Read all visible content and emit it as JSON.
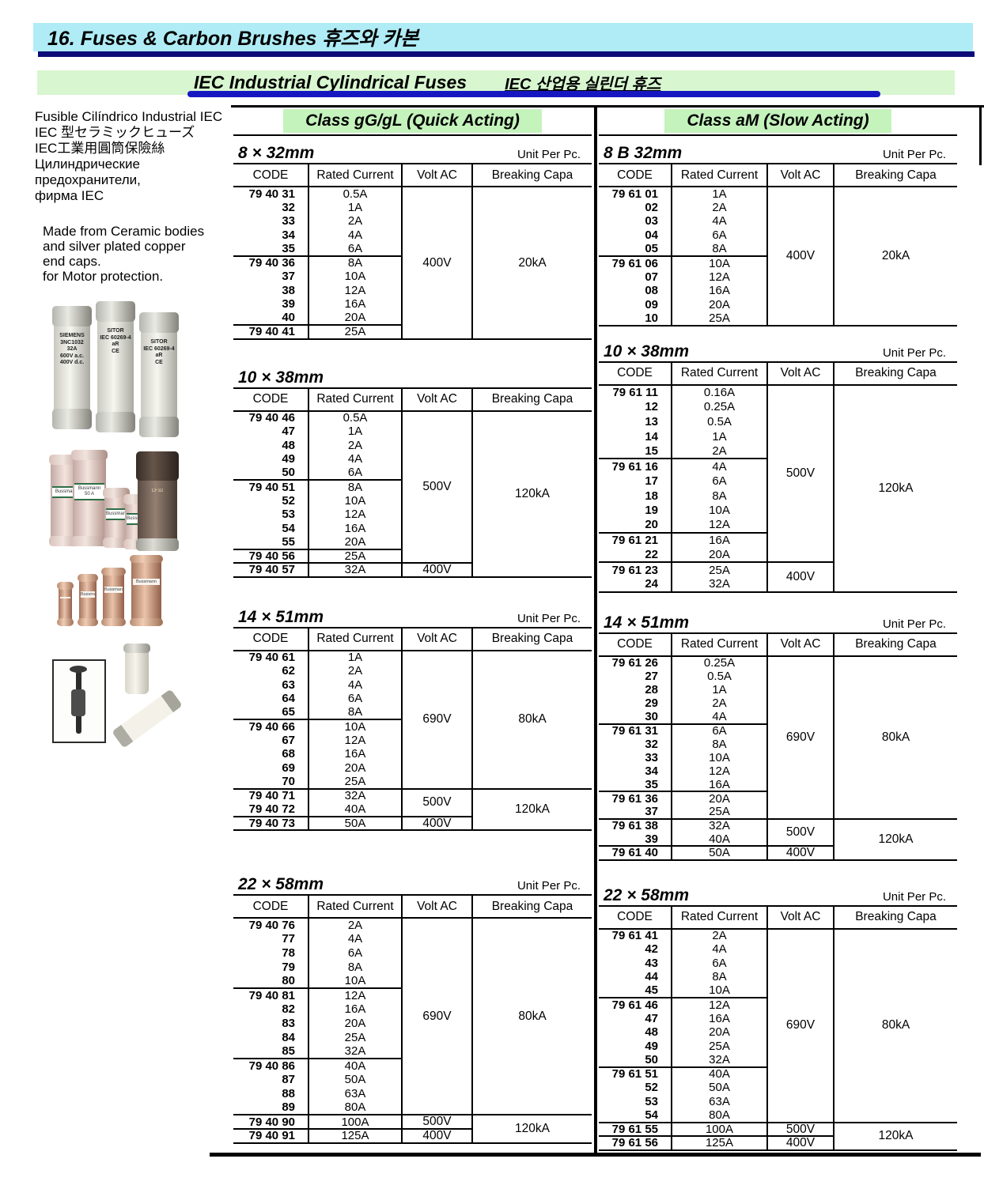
{
  "header": {
    "title": "16. Fuses & Carbon Brushes  휴즈와 카본"
  },
  "section": {
    "title_en": "IEC Industrial Cylindrical Fuses",
    "title_ko": "IEC 산업용 실린더 휴즈"
  },
  "sidebar": {
    "lines": [
      "Fusible Cilíndrico Industrial IEC",
      "IEC 型セラミックヒューズ",
      "IEC工業用圓筒保險絲",
      "Цилиндрические",
      "предохранители,",
      "фирма IEC"
    ],
    "note_lines": [
      "Made from Ceramic bodies",
      "and silver plated copper",
      "end caps.",
      "for Motor protection."
    ]
  },
  "photos": {
    "group1": {
      "fuses": [
        {
          "lines": [
            "SIEMENS",
            "3NC1032",
            "32A",
            "600V a.c.",
            "400V d.c."
          ]
        },
        {
          "lines": [
            "SITOR",
            "IEC 60269-4",
            "aR",
            "CE"
          ]
        },
        {
          "lines": [
            "SITOR",
            "IEC 60269-4",
            "aR",
            "CE"
          ]
        }
      ]
    },
    "group2": {
      "fuses": [
        {
          "lines": [
            "Bussmann"
          ]
        },
        {
          "lines": [
            "Bussmann",
            "50 A"
          ]
        },
        {
          "lines": [
            "Bussmann"
          ]
        },
        {
          "lines": [
            "Bussmann"
          ]
        },
        {
          "lines": [
            "CF32"
          ]
        }
      ]
    },
    "group3": {
      "fuses": [
        {
          "lines": []
        },
        {
          "lines": [
            "Bussmann"
          ]
        },
        {
          "lines": [
            "Bussmann"
          ]
        },
        {
          "lines": [
            "Bussmann"
          ]
        }
      ]
    }
  },
  "columns": [
    {
      "class_label": "Class gG/gL (Quick Acting)",
      "tables": [
        {
          "size": "8 × 32mm",
          "unit": "Unit Per Pc.",
          "headers": [
            "CODE",
            "Rated Current",
            "Volt AC",
            "Breaking Capa"
          ],
          "blocks": [
            {
              "codes": [
                "79 40 31",
                "32",
                "33",
                "34",
                "35"
              ],
              "currents": [
                "0.5A",
                "1A",
                "2A",
                "4A",
                "6A"
              ]
            },
            {
              "codes": [
                "79 40 36",
                "37",
                "38",
                "39",
                "40"
              ],
              "currents": [
                "8A",
                "10A",
                "12A",
                "16A",
                "20A"
              ]
            },
            {
              "codes": [
                "79 40 41"
              ],
              "currents": [
                "25A"
              ]
            }
          ],
          "volts": [
            {
              "from": 0,
              "to": 2,
              "label": "400V"
            }
          ],
          "capas": [
            {
              "from": 0,
              "to": 2,
              "label": "20kA"
            }
          ]
        },
        {
          "size": "10 × 38mm",
          "unit": "",
          "headers": [
            "CODE",
            "Rated Current",
            "Volt AC",
            "Breaking Capa"
          ],
          "blocks": [
            {
              "codes": [
                "79 40 46",
                "47",
                "48",
                "49",
                "50"
              ],
              "currents": [
                "0.5A",
                "1A",
                "2A",
                "4A",
                "6A"
              ]
            },
            {
              "codes": [
                "79 40 51",
                "52",
                "53",
                "54",
                "55"
              ],
              "currents": [
                "8A",
                "10A",
                "12A",
                "16A",
                "20A"
              ]
            },
            {
              "codes": [
                "79 40 56"
              ],
              "currents": [
                "25A"
              ]
            },
            {
              "codes": [
                "79 40 57"
              ],
              "currents": [
                "32A"
              ]
            }
          ],
          "volts": [
            {
              "from": 0,
              "to": 2,
              "label": "500V"
            },
            {
              "from": 3,
              "to": 3,
              "label": "400V"
            }
          ],
          "capas": [
            {
              "from": 0,
              "to": 3,
              "label": "120kA"
            }
          ]
        },
        {
          "size": "14 × 51mm",
          "unit": "Unit Per Pc.",
          "headers": [
            "CODE",
            "Rated Current",
            "Volt AC",
            "Breaking Capa"
          ],
          "blocks": [
            {
              "codes": [
                "79 40 61",
                "62",
                "63",
                "64",
                "65"
              ],
              "currents": [
                "1A",
                "2A",
                "4A",
                "6A",
                "8A"
              ]
            },
            {
              "codes": [
                "79 40 66",
                "67",
                "68",
                "69",
                "70"
              ],
              "currents": [
                "10A",
                "12A",
                "16A",
                "20A",
                "25A"
              ]
            },
            {
              "codes": [
                "79 40 71",
                "79 40 72"
              ],
              "currents": [
                "32A",
                "40A"
              ]
            },
            {
              "codes": [
                "79 40 73"
              ],
              "currents": [
                "50A"
              ]
            }
          ],
          "volts": [
            {
              "from": 0,
              "to": 1,
              "label": "690V"
            },
            {
              "from": 2,
              "to": 2,
              "label": "500V"
            },
            {
              "from": 3,
              "to": 3,
              "label": "400V"
            }
          ],
          "capas": [
            {
              "from": 0,
              "to": 1,
              "label": "80kA"
            },
            {
              "from": 2,
              "to": 3,
              "label": "120kA"
            }
          ]
        },
        {
          "size": "22 × 58mm",
          "unit": "Unit Per Pc.",
          "headers": [
            "CODE",
            "Rated Current",
            "Volt AC",
            "Breaking Capa"
          ],
          "blocks": [
            {
              "codes": [
                "79 40 76",
                "77",
                "78",
                "79",
                "80"
              ],
              "currents": [
                "2A",
                "4A",
                "6A",
                "8A",
                "10A"
              ]
            },
            {
              "codes": [
                "79 40 81",
                "82",
                "83",
                "84",
                "85"
              ],
              "currents": [
                "12A",
                "16A",
                "20A",
                "25A",
                "32A"
              ]
            },
            {
              "codes": [
                "79 40 86",
                "87",
                "88",
                "89"
              ],
              "currents": [
                "40A",
                "50A",
                "63A",
                "80A"
              ]
            },
            {
              "codes": [
                "79 40 90"
              ],
              "currents": [
                "100A"
              ]
            },
            {
              "codes": [
                "79 40 91"
              ],
              "currents": [
                "125A"
              ]
            }
          ],
          "volts": [
            {
              "from": 0,
              "to": 2,
              "label": "690V"
            },
            {
              "from": 3,
              "to": 3,
              "label": "500V"
            },
            {
              "from": 4,
              "to": 4,
              "label": "400V"
            }
          ],
          "capas": [
            {
              "from": 0,
              "to": 2,
              "label": "80kA"
            },
            {
              "from": 3,
              "to": 4,
              "label": "120kA"
            }
          ]
        }
      ]
    },
    {
      "class_label": "Class aM (Slow Acting)",
      "tables": [
        {
          "size": "8 B 32mm",
          "unit": "Unit Per Pc.",
          "headers": [
            "CODE",
            "Rated Current",
            "Volt AC",
            "Breaking Capa"
          ],
          "blocks": [
            {
              "codes": [
                "79 61 01",
                "02",
                "03",
                "04",
                "05"
              ],
              "currents": [
                "1A",
                "2A",
                "4A",
                "6A",
                "8A"
              ]
            },
            {
              "codes": [
                "79 61 06",
                "07",
                "08",
                "09",
                "10"
              ],
              "currents": [
                "10A",
                "12A",
                "16A",
                "20A",
                "25A"
              ]
            }
          ],
          "volts": [
            {
              "from": 0,
              "to": 1,
              "label": "400V"
            }
          ],
          "capas": [
            {
              "from": 0,
              "to": 1,
              "label": "20kA"
            }
          ]
        },
        {
          "size": "10 × 38mm",
          "unit": "Unit Per Pc.",
          "headers": [
            "CODE",
            "Rated Current",
            "Volt AC",
            "Breaking Capa"
          ],
          "blocks": [
            {
              "codes": [
                "79 61 11",
                "12",
                "13",
                "14",
                "15"
              ],
              "currents": [
                "0.16A",
                "0.25A",
                "0.5A",
                "1A",
                "2A"
              ]
            },
            {
              "codes": [
                "79 61 16",
                "17",
                "18",
                "19",
                "20"
              ],
              "currents": [
                "4A",
                "6A",
                "8A",
                "10A",
                "12A"
              ]
            },
            {
              "codes": [
                "79 61 21",
                "22"
              ],
              "currents": [
                "16A",
                "20A"
              ]
            },
            {
              "codes": [
                "79 61 23",
                "24"
              ],
              "currents": [
                "25A",
                "32A"
              ]
            }
          ],
          "volts": [
            {
              "from": 0,
              "to": 2,
              "label": "500V"
            },
            {
              "from": 3,
              "to": 3,
              "label": "400V"
            }
          ],
          "capas": [
            {
              "from": 0,
              "to": 3,
              "label": "120kA"
            }
          ]
        },
        {
          "size": "14 × 51mm",
          "unit": "Unit Per Pc.",
          "headers": [
            "CODE",
            "Rated Current",
            "Volt AC",
            "Breaking Capa"
          ],
          "blocks": [
            {
              "codes": [
                "79 61 26",
                "27",
                "28",
                "29",
                "30"
              ],
              "currents": [
                "0.25A",
                "0.5A",
                "1A",
                "2A",
                "4A"
              ]
            },
            {
              "codes": [
                "79 61 31",
                "32",
                "33",
                "34",
                "35"
              ],
              "currents": [
                "6A",
                "8A",
                "10A",
                "12A",
                "16A"
              ]
            },
            {
              "codes": [
                "79 61 36",
                "37"
              ],
              "currents": [
                "20A",
                "25A"
              ]
            },
            {
              "codes": [
                "79 61 38",
                "39"
              ],
              "currents": [
                "32A",
                "40A"
              ]
            },
            {
              "codes": [
                "79 61 40"
              ],
              "currents": [
                "50A"
              ]
            }
          ],
          "volts": [
            {
              "from": 0,
              "to": 2,
              "label": "690V"
            },
            {
              "from": 3,
              "to": 3,
              "label": "500V"
            },
            {
              "from": 4,
              "to": 4,
              "label": "400V"
            }
          ],
          "capas": [
            {
              "from": 0,
              "to": 2,
              "label": "80kA"
            },
            {
              "from": 3,
              "to": 4,
              "label": "120kA"
            }
          ]
        },
        {
          "size": "22 × 58mm",
          "unit": "Unit Per Pc.",
          "headers": [
            "CODE",
            "Rated Current",
            "Volt AC",
            "Breaking Capa"
          ],
          "blocks": [
            {
              "codes": [
                "79 61 41",
                "42",
                "43",
                "44",
                "45"
              ],
              "currents": [
                "2A",
                "4A",
                "6A",
                "8A",
                "10A"
              ]
            },
            {
              "codes": [
                "79 61 46",
                "47",
                "48",
                "49",
                "50"
              ],
              "currents": [
                "12A",
                "16A",
                "20A",
                "25A",
                "32A"
              ]
            },
            {
              "codes": [
                "79 61 51",
                "52",
                "53",
                "54"
              ],
              "currents": [
                "40A",
                "50A",
                "63A",
                "80A"
              ]
            },
            {
              "codes": [
                "79 61 55"
              ],
              "currents": [
                "100A"
              ]
            },
            {
              "codes": [
                "79 61 56"
              ],
              "currents": [
                "125A"
              ]
            }
          ],
          "volts": [
            {
              "from": 0,
              "to": 2,
              "label": "690V"
            },
            {
              "from": 3,
              "to": 3,
              "label": "500V"
            },
            {
              "from": 4,
              "to": 4,
              "label": "400V"
            }
          ],
          "capas": [
            {
              "from": 0,
              "to": 2,
              "label": "80kA"
            },
            {
              "from": 3,
              "to": 4,
              "label": "120kA"
            }
          ]
        }
      ]
    }
  ],
  "colors": {
    "band_cyan": "#b0ecf6",
    "navy": "#0c0c78",
    "band_green": "#d8f6d0",
    "class_green": "#c4f3bc",
    "underline_blue": "#1717c2"
  }
}
